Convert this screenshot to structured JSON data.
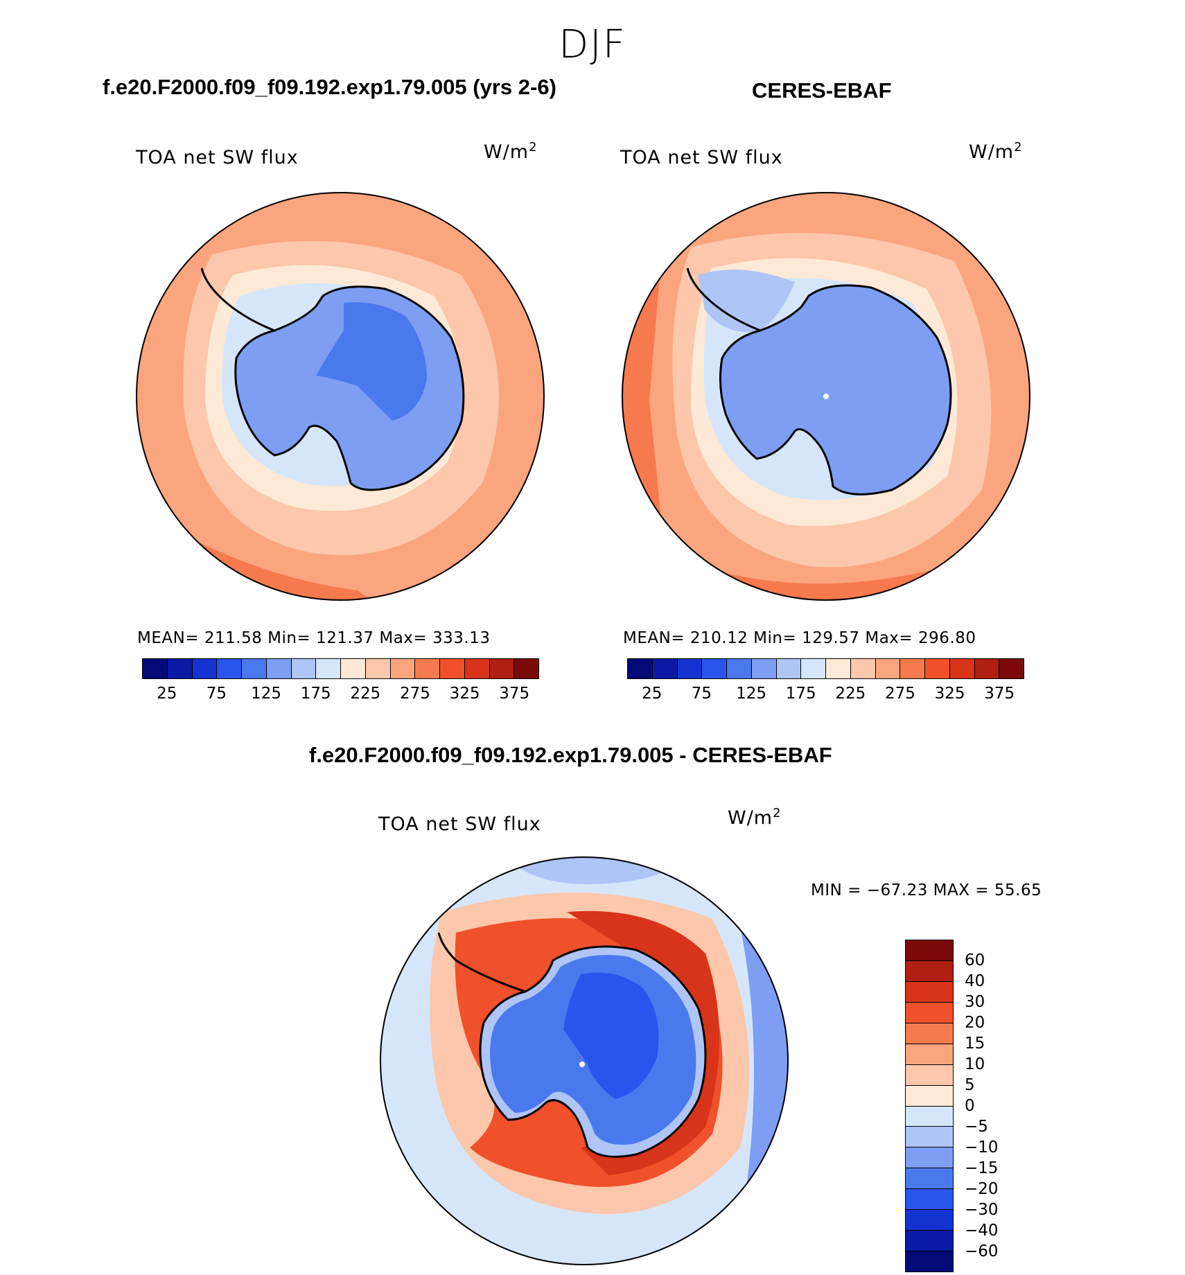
{
  "season": "DJF",
  "panels": {
    "model": {
      "title": "f.e20.F2000.f09_f09.192.exp1.79.005 (yrs 2-6)",
      "variable": "TOA net SW flux",
      "units": "W/m",
      "units_sup": "2",
      "stats": "MEAN= 211.58   Min= 121.37   Max= 333.13"
    },
    "obs": {
      "title": "CERES-EBAF",
      "variable": "TOA net SW flux",
      "units": "W/m",
      "units_sup": "2",
      "stats": "MEAN= 210.12   Min= 129.57   Max= 296.80"
    },
    "diff": {
      "title": "f.e20.F2000.f09_f09.192.exp1.79.005 - CERES-EBAF",
      "variable": "TOA net SW flux",
      "units": "W/m",
      "units_sup": "2",
      "stats": "MIN = −67.23 MAX =   55.65"
    }
  },
  "colorbar_abs": {
    "colors": [
      "#040a78",
      "#0a1aa6",
      "#1434d2",
      "#2a55ec",
      "#4a79ee",
      "#7d9ef2",
      "#aec5f6",
      "#d6e6fa",
      "#fde9d6",
      "#fcc7aa",
      "#fba57f",
      "#f77a4e",
      "#f0502a",
      "#d8341a",
      "#b01f12",
      "#7d0a0a"
    ],
    "labels": [
      "25",
      "75",
      "125",
      "175",
      "225",
      "275",
      "325",
      "375"
    ]
  },
  "colorbar_diff": {
    "colors": [
      "#7d0a0a",
      "#b01f12",
      "#d8341a",
      "#f0502a",
      "#f77a4e",
      "#fba57f",
      "#fcc7aa",
      "#fde9d6",
      "#d6e6fa",
      "#aec5f6",
      "#7d9ef2",
      "#4a79ee",
      "#2a55ec",
      "#1434d2",
      "#0a1aa6",
      "#040a78"
    ],
    "labels": [
      "60",
      "40",
      "30",
      "20",
      "15",
      "10",
      "5",
      "0",
      "−5",
      "−10",
      "−15",
      "−20",
      "−30",
      "−40",
      "−60"
    ]
  },
  "map_colors": {
    "ocean_far": "#fba57f",
    "ocean_warm": "#f77a4e",
    "ocean_mid": "#fcc7aa",
    "ocean_near": "#fde9d6",
    "ice_edge": "#d6e6fa",
    "ice_light": "#aec5f6",
    "land": "#7d9ef2",
    "land_deep": "#4a79ee",
    "diff_neg_far": "#d6e6fa",
    "diff_ring": "#f0502a",
    "diff_ring_light": "#fba57f",
    "diff_land": "#4a79ee",
    "diff_land_deep": "#2a55ec",
    "diff_edge": "#aec5f6"
  }
}
